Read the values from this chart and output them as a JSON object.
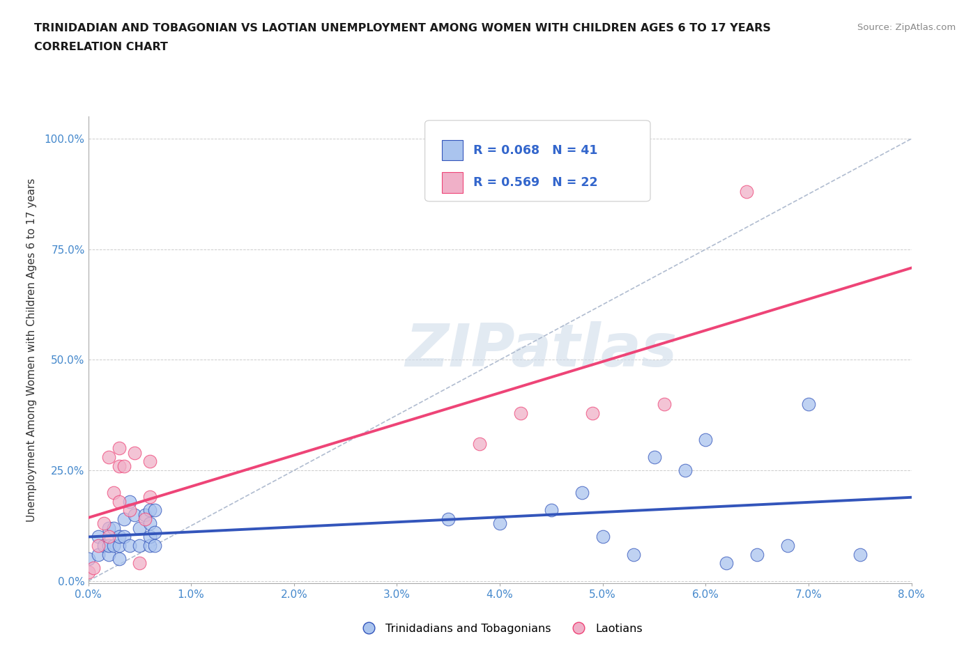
{
  "title_line1": "TRINIDADIAN AND TOBAGONIAN VS LAOTIAN UNEMPLOYMENT AMONG WOMEN WITH CHILDREN AGES 6 TO 17 YEARS",
  "title_line2": "CORRELATION CHART",
  "source": "Source: ZipAtlas.com",
  "xlabel_ticks": [
    "0.0%",
    "1.0%",
    "2.0%",
    "3.0%",
    "4.0%",
    "5.0%",
    "6.0%",
    "7.0%",
    "8.0%"
  ],
  "ylabel": "Unemployment Among Women with Children Ages 6 to 17 years",
  "xlim": [
    0.0,
    0.08
  ],
  "ylim": [
    -0.005,
    1.05
  ],
  "yticks": [
    0.0,
    0.25,
    0.5,
    0.75,
    1.0
  ],
  "ytick_labels": [
    "0.0%",
    "25.0%",
    "50.0%",
    "75.0%",
    "100.0%"
  ],
  "legend_label1": "Trinidadians and Tobagonians",
  "legend_label2": "Laotians",
  "R1": 0.068,
  "N1": 41,
  "R2": 0.569,
  "N2": 22,
  "color_blue": "#aac4ee",
  "color_pink": "#f0b0c8",
  "line_blue": "#3355bb",
  "line_pink": "#ee4477",
  "diag_line_color": "#b0bcd0",
  "watermark": "ZIPatlas",
  "trinidadian_x": [
    0.0,
    0.001,
    0.001,
    0.0015,
    0.002,
    0.002,
    0.002,
    0.0025,
    0.0025,
    0.003,
    0.003,
    0.003,
    0.0035,
    0.0035,
    0.004,
    0.004,
    0.0045,
    0.005,
    0.005,
    0.0055,
    0.006,
    0.006,
    0.006,
    0.006,
    0.0065,
    0.0065,
    0.0065,
    0.035,
    0.04,
    0.045,
    0.048,
    0.05,
    0.053,
    0.055,
    0.058,
    0.06,
    0.062,
    0.065,
    0.068,
    0.07,
    0.075
  ],
  "trinidadian_y": [
    0.05,
    0.06,
    0.1,
    0.08,
    0.06,
    0.08,
    0.12,
    0.08,
    0.12,
    0.05,
    0.08,
    0.1,
    0.1,
    0.14,
    0.08,
    0.18,
    0.15,
    0.08,
    0.12,
    0.15,
    0.08,
    0.1,
    0.13,
    0.16,
    0.08,
    0.11,
    0.16,
    0.14,
    0.13,
    0.16,
    0.2,
    0.1,
    0.06,
    0.28,
    0.25,
    0.32,
    0.04,
    0.06,
    0.08,
    0.4,
    0.06
  ],
  "laotian_x": [
    0.0,
    0.0005,
    0.001,
    0.0015,
    0.002,
    0.002,
    0.0025,
    0.003,
    0.003,
    0.003,
    0.0035,
    0.004,
    0.0045,
    0.005,
    0.0055,
    0.006,
    0.006,
    0.038,
    0.042,
    0.049,
    0.056,
    0.064
  ],
  "laotian_y": [
    0.02,
    0.03,
    0.08,
    0.13,
    0.1,
    0.28,
    0.2,
    0.18,
    0.26,
    0.3,
    0.26,
    0.16,
    0.29,
    0.04,
    0.14,
    0.19,
    0.27,
    0.31,
    0.38,
    0.38,
    0.4,
    0.88
  ]
}
